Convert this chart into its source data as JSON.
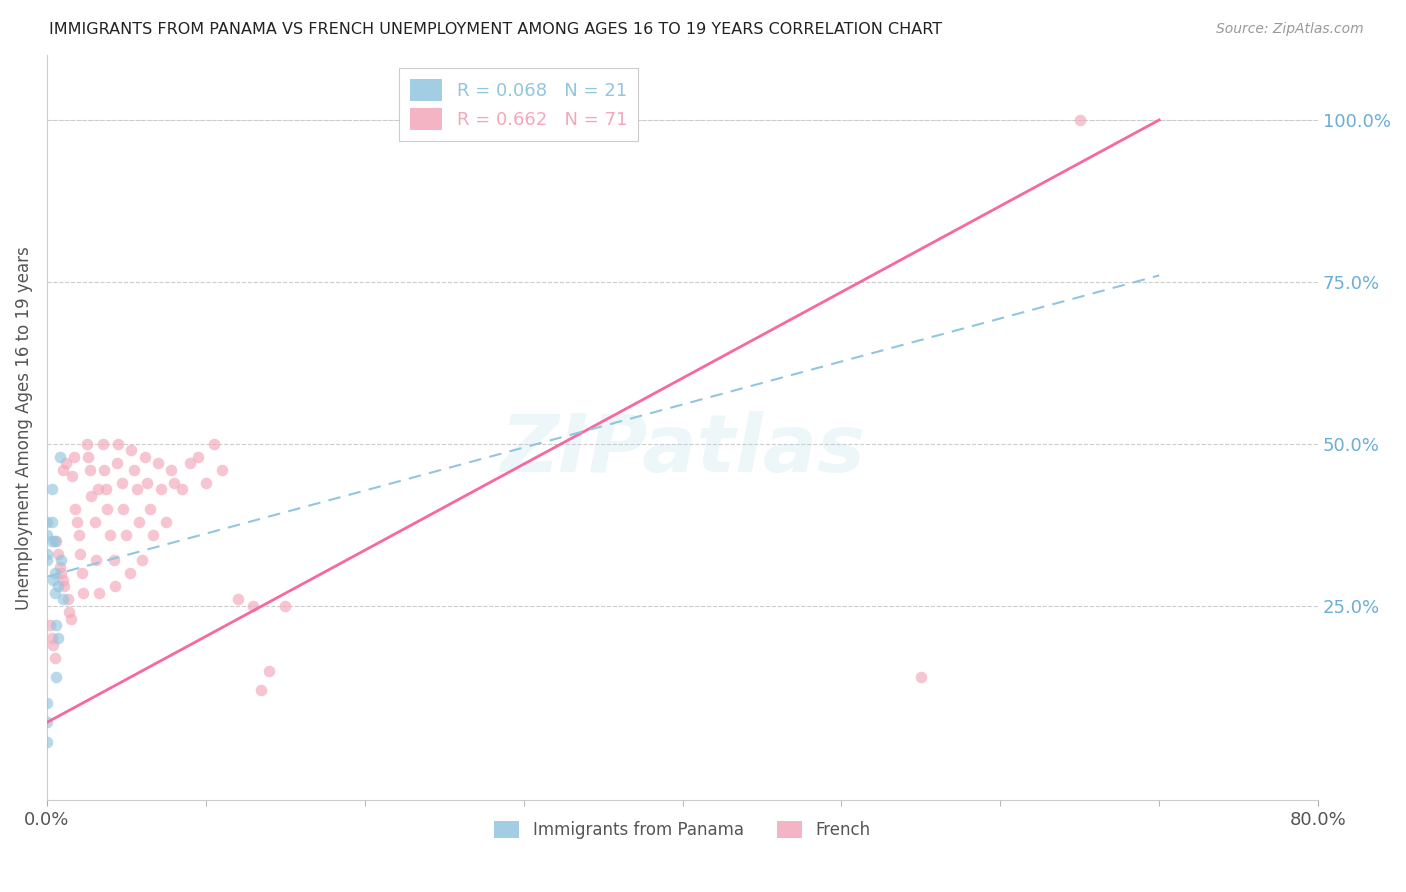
{
  "title": "IMMIGRANTS FROM PANAMA VS FRENCH UNEMPLOYMENT AMONG AGES 16 TO 19 YEARS CORRELATION CHART",
  "source": "Source: ZipAtlas.com",
  "ylabel": "Unemployment Among Ages 16 to 19 years",
  "right_yticks": [
    "100.0%",
    "75.0%",
    "50.0%",
    "25.0%"
  ],
  "right_ytick_vals": [
    1.0,
    0.75,
    0.5,
    0.25
  ],
  "watermark": "ZIPatlas",
  "legend_entries": [
    {
      "label": "R = 0.068   N = 21",
      "color": "#92c5de"
    },
    {
      "label": "R = 0.662   N = 71",
      "color": "#f4a7b9"
    }
  ],
  "panama_scatter_x": [
    0.0,
    0.0,
    0.0,
    0.0,
    0.0,
    0.0,
    0.0,
    0.003,
    0.003,
    0.003,
    0.004,
    0.005,
    0.005,
    0.005,
    0.006,
    0.006,
    0.007,
    0.007,
    0.008,
    0.009,
    0.01
  ],
  "panama_scatter_y": [
    0.38,
    0.36,
    0.33,
    0.32,
    0.1,
    0.07,
    0.04,
    0.43,
    0.38,
    0.35,
    0.29,
    0.35,
    0.3,
    0.27,
    0.22,
    0.14,
    0.28,
    0.2,
    0.48,
    0.32,
    0.26
  ],
  "french_scatter_x": [
    0.002,
    0.003,
    0.004,
    0.005,
    0.006,
    0.007,
    0.008,
    0.009,
    0.01,
    0.01,
    0.011,
    0.012,
    0.013,
    0.014,
    0.015,
    0.016,
    0.017,
    0.018,
    0.019,
    0.02,
    0.021,
    0.022,
    0.023,
    0.025,
    0.026,
    0.027,
    0.028,
    0.03,
    0.031,
    0.032,
    0.033,
    0.035,
    0.036,
    0.037,
    0.038,
    0.04,
    0.042,
    0.043,
    0.044,
    0.045,
    0.047,
    0.048,
    0.05,
    0.052,
    0.053,
    0.055,
    0.057,
    0.058,
    0.06,
    0.062,
    0.063,
    0.065,
    0.067,
    0.07,
    0.072,
    0.075,
    0.078,
    0.08,
    0.085,
    0.09,
    0.095,
    0.1,
    0.105,
    0.11,
    0.12,
    0.13,
    0.135,
    0.14,
    0.15,
    0.55,
    0.65
  ],
  "french_scatter_y": [
    0.22,
    0.2,
    0.19,
    0.17,
    0.35,
    0.33,
    0.31,
    0.3,
    0.29,
    0.46,
    0.28,
    0.47,
    0.26,
    0.24,
    0.23,
    0.45,
    0.48,
    0.4,
    0.38,
    0.36,
    0.33,
    0.3,
    0.27,
    0.5,
    0.48,
    0.46,
    0.42,
    0.38,
    0.32,
    0.43,
    0.27,
    0.5,
    0.46,
    0.43,
    0.4,
    0.36,
    0.32,
    0.28,
    0.47,
    0.5,
    0.44,
    0.4,
    0.36,
    0.3,
    0.49,
    0.46,
    0.43,
    0.38,
    0.32,
    0.48,
    0.44,
    0.4,
    0.36,
    0.47,
    0.43,
    0.38,
    0.46,
    0.44,
    0.43,
    0.47,
    0.48,
    0.44,
    0.5,
    0.46,
    0.26,
    0.25,
    0.12,
    0.15,
    0.25,
    0.14,
    1.0
  ],
  "panama_line_x": [
    0.0,
    0.7
  ],
  "panama_line_y": [
    0.295,
    0.76
  ],
  "french_line_x": [
    0.0,
    0.7
  ],
  "french_line_y": [
    0.07,
    1.0
  ],
  "scatter_alpha": 0.65,
  "scatter_size": 70,
  "panama_color": "#92c5de",
  "french_color": "#f4a7b9",
  "panama_line_color": "#92c5de",
  "french_line_color": "#f768a1",
  "xlim": [
    0.0,
    0.8
  ],
  "ylim": [
    -0.05,
    1.1
  ],
  "background_color": "#ffffff",
  "grid_color": "#cccccc"
}
